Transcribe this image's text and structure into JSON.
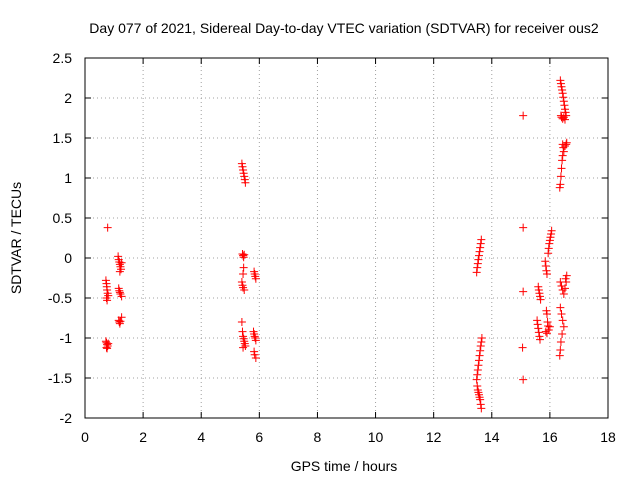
{
  "chart_data": {
    "type": "scatter",
    "title": "Day 077 of 2021, Sidereal Day-to-day VTEC variation (SDTVAR) for receiver ous2",
    "xlabel": "GPS time / hours",
    "ylabel": "SDTVAR / TECUs",
    "xlim": [
      0,
      18
    ],
    "ylim": [
      -2,
      2.5
    ],
    "grid": true,
    "marker": "+",
    "x_ticks": [
      0,
      2,
      4,
      6,
      8,
      10,
      12,
      14,
      16,
      18
    ],
    "x_tick_labels": [
      "0",
      "2",
      "4",
      "6",
      "8",
      "10",
      "12",
      "14",
      "16",
      "18"
    ],
    "y_ticks": [
      -2,
      -1.5,
      -1,
      -0.5,
      0,
      0.5,
      1,
      1.5,
      2,
      2.5
    ],
    "y_tick_labels": [
      "-2",
      "-1.5",
      "-1",
      "-0.5",
      "0",
      "0.5",
      "1",
      "1.5",
      "2",
      "2.5"
    ],
    "series": [
      {
        "name": "SDTVAR",
        "color": "#ff0000",
        "points": [
          [
            0.78,
            0.38
          ],
          [
            0.72,
            -0.28
          ],
          [
            0.74,
            -0.32
          ],
          [
            0.75,
            -0.36
          ],
          [
            0.76,
            -0.4
          ],
          [
            0.78,
            -0.44
          ],
          [
            0.8,
            -0.47
          ],
          [
            0.74,
            -0.5
          ],
          [
            0.76,
            -0.53
          ],
          [
            0.72,
            -1.04
          ],
          [
            0.74,
            -1.06
          ],
          [
            0.76,
            -1.08
          ],
          [
            0.78,
            -1.1
          ],
          [
            0.8,
            -1.07
          ],
          [
            0.74,
            -1.12
          ],
          [
            0.76,
            -1.13
          ],
          [
            1.14,
            0.02
          ],
          [
            1.16,
            -0.02
          ],
          [
            1.18,
            -0.05
          ],
          [
            1.2,
            -0.08
          ],
          [
            1.22,
            -0.11
          ],
          [
            1.24,
            -0.14
          ],
          [
            1.26,
            -0.06
          ],
          [
            1.2,
            -0.17
          ],
          [
            1.16,
            -0.38
          ],
          [
            1.18,
            -0.41
          ],
          [
            1.2,
            -0.43
          ],
          [
            1.22,
            -0.45
          ],
          [
            1.26,
            -0.48
          ],
          [
            1.16,
            -0.78
          ],
          [
            1.18,
            -0.8
          ],
          [
            1.2,
            -0.82
          ],
          [
            1.22,
            -0.79
          ],
          [
            1.26,
            -0.74
          ],
          [
            5.4,
            1.18
          ],
          [
            5.42,
            1.14
          ],
          [
            5.44,
            1.1
          ],
          [
            5.46,
            1.06
          ],
          [
            5.48,
            1.02
          ],
          [
            5.5,
            0.98
          ],
          [
            5.52,
            0.94
          ],
          [
            5.42,
            0.05
          ],
          [
            5.44,
            0.03
          ],
          [
            5.46,
            0.01
          ],
          [
            5.48,
            0.04
          ],
          [
            5.46,
            -0.12
          ],
          [
            5.44,
            -0.2
          ],
          [
            5.4,
            -0.3
          ],
          [
            5.42,
            -0.34
          ],
          [
            5.44,
            -0.37
          ],
          [
            5.48,
            -0.4
          ],
          [
            5.4,
            -0.8
          ],
          [
            5.42,
            -0.92
          ],
          [
            5.44,
            -0.98
          ],
          [
            5.46,
            -1.01
          ],
          [
            5.48,
            -1.04
          ],
          [
            5.5,
            -1.07
          ],
          [
            5.52,
            -1.1
          ],
          [
            5.44,
            -1.12
          ],
          [
            5.82,
            -0.17
          ],
          [
            5.84,
            -0.2
          ],
          [
            5.86,
            -0.23
          ],
          [
            5.88,
            -0.26
          ],
          [
            5.8,
            -0.92
          ],
          [
            5.82,
            -0.95
          ],
          [
            5.84,
            -0.98
          ],
          [
            5.86,
            -1.0
          ],
          [
            5.88,
            -1.03
          ],
          [
            5.82,
            -1.17
          ],
          [
            5.84,
            -1.21
          ],
          [
            5.88,
            -1.25
          ],
          [
            13.64,
            0.23
          ],
          [
            13.62,
            0.18
          ],
          [
            13.6,
            0.13
          ],
          [
            13.58,
            0.08
          ],
          [
            13.56,
            0.03
          ],
          [
            13.54,
            -0.02
          ],
          [
            13.52,
            -0.07
          ],
          [
            13.5,
            -0.12
          ],
          [
            13.48,
            -0.18
          ],
          [
            13.66,
            -1.0
          ],
          [
            13.64,
            -1.05
          ],
          [
            13.62,
            -1.1
          ],
          [
            13.6,
            -1.16
          ],
          [
            13.58,
            -1.22
          ],
          [
            13.56,
            -1.28
          ],
          [
            13.54,
            -1.34
          ],
          [
            13.52,
            -1.4
          ],
          [
            13.5,
            -1.46
          ],
          [
            13.48,
            -1.52
          ],
          [
            13.5,
            -1.6
          ],
          [
            13.52,
            -1.65
          ],
          [
            13.54,
            -1.68
          ],
          [
            13.56,
            -1.71
          ],
          [
            13.58,
            -1.74
          ],
          [
            13.6,
            -1.77
          ],
          [
            13.62,
            -1.83
          ],
          [
            13.64,
            -1.88
          ],
          [
            15.08,
            1.78
          ],
          [
            15.08,
            0.38
          ],
          [
            15.08,
            -0.42
          ],
          [
            15.06,
            -1.12
          ],
          [
            15.08,
            -1.52
          ],
          [
            15.6,
            -0.36
          ],
          [
            15.62,
            -0.4
          ],
          [
            15.64,
            -0.44
          ],
          [
            15.66,
            -0.48
          ],
          [
            15.68,
            -0.52
          ],
          [
            15.56,
            -0.78
          ],
          [
            15.58,
            -0.83
          ],
          [
            15.6,
            -0.88
          ],
          [
            15.62,
            -0.93
          ],
          [
            15.64,
            -0.98
          ],
          [
            15.66,
            -1.02
          ],
          [
            15.84,
            -0.04
          ],
          [
            15.86,
            -0.1
          ],
          [
            15.88,
            -0.16
          ],
          [
            15.9,
            -0.2
          ],
          [
            15.88,
            -0.66
          ],
          [
            15.9,
            -0.7
          ],
          [
            15.92,
            -0.8
          ],
          [
            15.94,
            -0.85
          ],
          [
            15.86,
            -0.92
          ],
          [
            15.9,
            -0.94
          ],
          [
            15.96,
            -0.9
          ],
          [
            16.0,
            -0.86
          ],
          [
            15.94,
            0.06
          ],
          [
            15.96,
            0.12
          ],
          [
            15.98,
            0.18
          ],
          [
            16.0,
            0.22
          ],
          [
            16.02,
            0.26
          ],
          [
            16.04,
            0.3
          ],
          [
            16.06,
            0.34
          ],
          [
            16.36,
            2.22
          ],
          [
            16.38,
            2.18
          ],
          [
            16.4,
            2.14
          ],
          [
            16.42,
            2.1
          ],
          [
            16.44,
            2.06
          ],
          [
            16.46,
            2.01
          ],
          [
            16.48,
            1.96
          ],
          [
            16.5,
            1.91
          ],
          [
            16.52,
            1.86
          ],
          [
            16.54,
            1.82
          ],
          [
            16.38,
            1.78
          ],
          [
            16.4,
            1.76
          ],
          [
            16.44,
            1.74
          ],
          [
            16.48,
            1.76
          ],
          [
            16.52,
            1.73
          ],
          [
            16.56,
            1.78
          ],
          [
            16.44,
            1.42
          ],
          [
            16.46,
            1.38
          ],
          [
            16.48,
            1.33
          ],
          [
            16.44,
            1.28
          ],
          [
            16.42,
            1.22
          ],
          [
            16.4,
            1.12
          ],
          [
            16.38,
            1.02
          ],
          [
            16.36,
            0.92
          ],
          [
            16.34,
            0.88
          ],
          [
            16.56,
            1.42
          ],
          [
            16.58,
            1.44
          ],
          [
            16.52,
            1.4
          ],
          [
            16.36,
            -0.3
          ],
          [
            16.4,
            -0.35
          ],
          [
            16.44,
            -0.4
          ],
          [
            16.48,
            -0.45
          ],
          [
            16.52,
            -0.38
          ],
          [
            16.56,
            -0.3
          ],
          [
            16.58,
            -0.22
          ],
          [
            16.54,
            -0.26
          ],
          [
            16.36,
            -0.62
          ],
          [
            16.4,
            -0.7
          ],
          [
            16.44,
            -0.78
          ],
          [
            16.48,
            -0.86
          ],
          [
            16.42,
            -0.95
          ],
          [
            16.38,
            -1.05
          ],
          [
            16.36,
            -1.15
          ],
          [
            16.34,
            -1.22
          ]
        ]
      }
    ]
  }
}
